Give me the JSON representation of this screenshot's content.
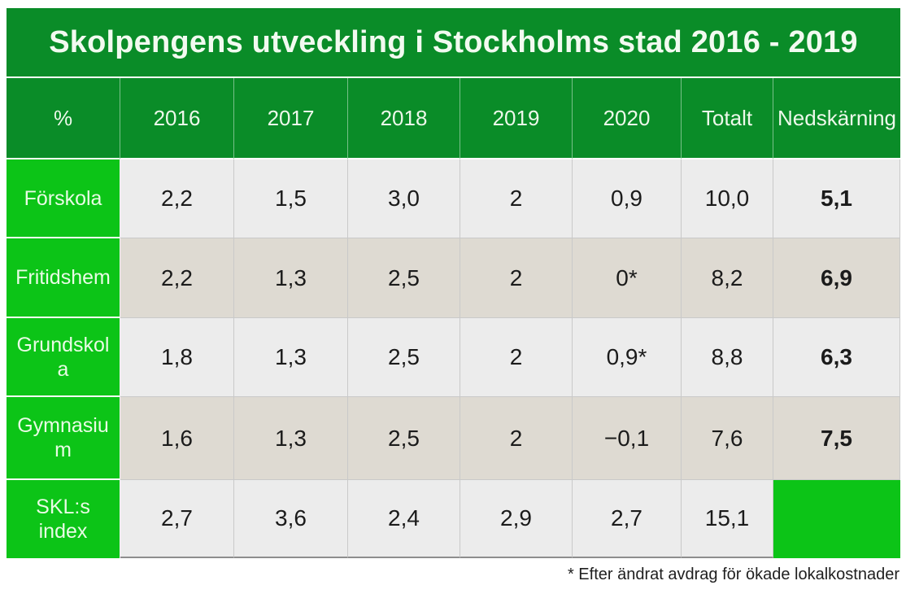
{
  "chart_data": {
    "type": "table",
    "title": "Skolpengens utveckling i Stockholms stad 2016 - 2019",
    "columns": [
      "%",
      "2016",
      "2017",
      "2018",
      "2019",
      "2020",
      "Totalt",
      "Nedskärning"
    ],
    "rows": [
      {
        "label": "Förskola",
        "values": [
          "2,2",
          "1,5",
          "3,0",
          "2",
          "0,9",
          "10,0",
          "5,1"
        ]
      },
      {
        "label": "Fritidshem",
        "values": [
          "2,2",
          "1,3",
          "2,5",
          "2",
          "0*",
          "8,2",
          "6,9"
        ]
      },
      {
        "label": "Grundskola",
        "values": [
          "1,8",
          "1,3",
          "2,5",
          "2",
          "0,9*",
          "8,8",
          "6,3"
        ]
      },
      {
        "label": "Gymnasium",
        "values": [
          "1,6",
          "1,3",
          "2,5",
          "2",
          "−0,1",
          "7,6",
          "7,5"
        ]
      },
      {
        "label": "SKL:s index",
        "values": [
          "2,7",
          "3,6",
          "2,4",
          "2,9",
          "2,7",
          "15,1",
          ""
        ]
      }
    ],
    "footnote": "* Efter ändrat avdrag för ökade lokalkostnader"
  },
  "colors": {
    "header_green": "#0a8c28",
    "label_green": "#0cc417",
    "row_light": "#ececec",
    "row_dark": "#dedad2",
    "header_text": "#edf8ea",
    "data_text": "#1b1b1b"
  }
}
